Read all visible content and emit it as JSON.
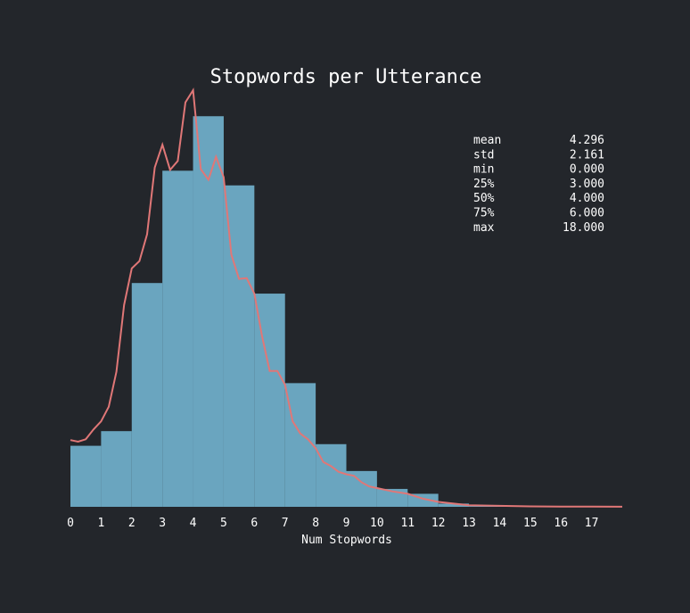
{
  "chart_data": {
    "type": "bar",
    "title": "Stopwords per Utterance",
    "xlabel": "Num Stopwords",
    "ylabel": "",
    "bin_edges": [
      0,
      1,
      2,
      3,
      4,
      5,
      6,
      7,
      8,
      9,
      10,
      11,
      12,
      13,
      14,
      15,
      16,
      17,
      18
    ],
    "values": [
      0.075,
      0.093,
      0.275,
      0.413,
      0.48,
      0.395,
      0.262,
      0.152,
      0.077,
      0.044,
      0.022,
      0.016,
      0.004,
      0.001,
      0.0005,
      0.0003,
      0.0002,
      0.0001
    ],
    "xticks": [
      "0",
      "1",
      "2",
      "3",
      "4",
      "5",
      "6",
      "7",
      "8",
      "9",
      "10",
      "11",
      "12",
      "13",
      "14",
      "15",
      "16",
      "17"
    ],
    "xlim": [
      0,
      18
    ],
    "ylim": [
      0,
      0.5
    ],
    "kde": {
      "name": "density",
      "x": [
        0,
        0.25,
        0.5,
        0.75,
        1,
        1.25,
        1.5,
        1.75,
        2,
        2.25,
        2.5,
        2.75,
        3,
        3.25,
        3.5,
        3.75,
        4,
        4.25,
        4.5,
        4.75,
        5,
        5.25,
        5.5,
        5.75,
        6,
        6.25,
        6.5,
        6.75,
        7,
        7.25,
        7.5,
        7.75,
        8,
        8.25,
        8.5,
        8.75,
        9,
        9.25,
        9.5,
        9.75,
        10,
        10.5,
        11,
        11.5,
        12,
        12.5,
        13,
        14,
        15,
        16,
        17,
        18
      ],
      "y": [
        0.082,
        0.08,
        0.083,
        0.095,
        0.105,
        0.123,
        0.166,
        0.248,
        0.293,
        0.302,
        0.335,
        0.417,
        0.445,
        0.414,
        0.425,
        0.497,
        0.512,
        0.415,
        0.402,
        0.43,
        0.405,
        0.31,
        0.28,
        0.281,
        0.262,
        0.21,
        0.167,
        0.167,
        0.15,
        0.105,
        0.09,
        0.083,
        0.072,
        0.055,
        0.05,
        0.043,
        0.04,
        0.038,
        0.03,
        0.025,
        0.023,
        0.019,
        0.016,
        0.01,
        0.006,
        0.004,
        0.002,
        0.0012,
        0.0006,
        0.0003,
        0.0002,
        0.0001
      ]
    },
    "colors": {
      "bars": "#6aa5bf",
      "kde": "#e07777",
      "background": "#23262b",
      "text": "#ffffff"
    },
    "grid": false,
    "legend": "none"
  },
  "stats": [
    {
      "label": "mean",
      "value": "4.296"
    },
    {
      "label": "std",
      "value": "2.161"
    },
    {
      "label": "min",
      "value": "0.000"
    },
    {
      "label": "25%",
      "value": "3.000"
    },
    {
      "label": "50%",
      "value": "4.000"
    },
    {
      "label": "75%",
      "value": "6.000"
    },
    {
      "label": "max",
      "value": "18.000"
    }
  ]
}
